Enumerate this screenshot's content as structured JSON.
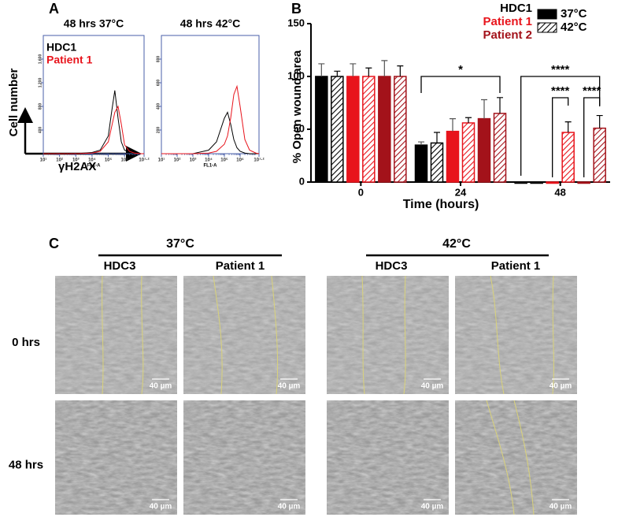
{
  "panel_labels": [
    "A",
    "B",
    "C"
  ],
  "panel_a": {
    "ylabel": "Cell number",
    "xlabel": "γH2AX"
  },
  "chart_data": [
    {
      "type": "line",
      "title": "48 hrs 37°C",
      "xlabel": "FL1-A",
      "x": [
        1,
        2,
        3,
        4,
        4.5,
        5,
        5.2,
        5.4,
        5.6,
        5.8,
        6,
        6.3,
        6.6,
        7,
        7.2
      ],
      "series": [
        {
          "name": "HDC1",
          "color": "#000000",
          "values": [
            0,
            0,
            0,
            20,
            60,
            300,
            700,
            1070,
            600,
            200,
            60,
            20,
            5,
            0,
            0
          ]
        },
        {
          "name": "Patient 1",
          "color": "#e8141c",
          "values": [
            0,
            0,
            0,
            10,
            40,
            200,
            450,
            700,
            800,
            500,
            150,
            40,
            10,
            0,
            0
          ]
        }
      ],
      "xlim": [
        1,
        7.2
      ],
      "xticks": [
        {
          "value": 1,
          "label": "10¹"
        },
        {
          "value": 2,
          "label": "10²"
        },
        {
          "value": 3,
          "label": "10³"
        },
        {
          "value": 4,
          "label": "10⁴"
        },
        {
          "value": 5,
          "label": "10⁵"
        },
        {
          "value": 6,
          "label": "10⁶"
        },
        {
          "value": 7.2,
          "label": "10⁷·²"
        }
      ],
      "ylim": [
        0,
        2000
      ],
      "yticks": [
        400,
        800,
        {
          "value": 1200,
          "label": "1,200"
        },
        {
          "value": 1600,
          "label": "1,600"
        }
      ],
      "legend": "upper left"
    },
    {
      "type": "line",
      "title": "48 hrs 42°C",
      "xlabel": "FL1-A",
      "x": [
        1,
        2,
        3,
        4,
        4.5,
        5,
        5.2,
        5.4,
        5.6,
        5.8,
        6,
        6.3,
        6.6,
        7,
        7.2
      ],
      "series": [
        {
          "color": "#000000",
          "values": [
            0,
            0,
            0,
            30,
            100,
            300,
            350,
            250,
            120,
            50,
            20,
            5,
            0,
            0,
            0
          ]
        },
        {
          "color": "#e8141c",
          "values": [
            0,
            0,
            0,
            5,
            20,
            80,
            150,
            300,
            500,
            570,
            400,
            120,
            30,
            5,
            0
          ]
        }
      ],
      "xlim": [
        1,
        7.2
      ],
      "xticks": [
        {
          "value": 1,
          "label": "10¹"
        },
        {
          "value": 2,
          "label": "10²"
        },
        {
          "value": 3,
          "label": "10³"
        },
        {
          "value": 4,
          "label": "10⁴"
        },
        {
          "value": 5,
          "label": "10⁵"
        },
        {
          "value": 6,
          "label": "10⁶"
        },
        {
          "value": 7.2,
          "label": "10⁷·²"
        }
      ],
      "ylim": [
        0,
        1000
      ],
      "yticks": [
        200,
        400,
        600,
        800
      ]
    },
    {
      "type": "bar",
      "ylabel": "% Open wound area",
      "xlabel": "Time (hours)",
      "categories": [
        "0",
        "24",
        "48"
      ],
      "series": [
        {
          "name": "HDC1",
          "color": "#000000",
          "hatched": false,
          "values": [
            100,
            35,
            0
          ],
          "errors": [
            12,
            3,
            0
          ]
        },
        {
          "name": "HDC1",
          "color": "#000000",
          "hatched": true,
          "values": [
            100,
            37,
            0
          ],
          "errors": [
            5,
            10,
            0
          ]
        },
        {
          "name": "Patient 1",
          "color": "#e8141c",
          "hatched": false,
          "values": [
            100,
            48,
            0
          ],
          "errors": [
            12,
            12,
            0
          ]
        },
        {
          "name": "Patient 1",
          "color": "#e8141c",
          "hatched": true,
          "values": [
            100,
            56,
            47
          ],
          "errors": [
            8,
            5,
            10
          ]
        },
        {
          "name": "Patient 2",
          "color": "#a3121a",
          "hatched": false,
          "values": [
            100,
            60,
            0
          ],
          "errors": [
            15,
            18,
            0
          ]
        },
        {
          "name": "Patient 2",
          "color": "#a3121a",
          "hatched": true,
          "values": [
            100,
            65,
            51
          ],
          "errors": [
            10,
            15,
            12
          ]
        }
      ],
      "conditions": [
        "37°C",
        "42°C"
      ],
      "ylim": [
        0,
        150
      ],
      "yticks": [
        0,
        50,
        100,
        150
      ],
      "annotations": [
        "*",
        "****",
        "****",
        "****"
      ]
    }
  ],
  "panel_c": {
    "temperatures": [
      "37°C",
      "42°C"
    ],
    "columns": [
      "HDC3",
      "Patient 1",
      "HDC3",
      "Patient 1"
    ],
    "rows": [
      "0 hrs",
      "48 hrs"
    ],
    "scale_bars": [
      "40 µm",
      "40 µm",
      "40 µm",
      "40 µm",
      "40 µm",
      "40 µm",
      "40 µm",
      "40 µm"
    ]
  }
}
